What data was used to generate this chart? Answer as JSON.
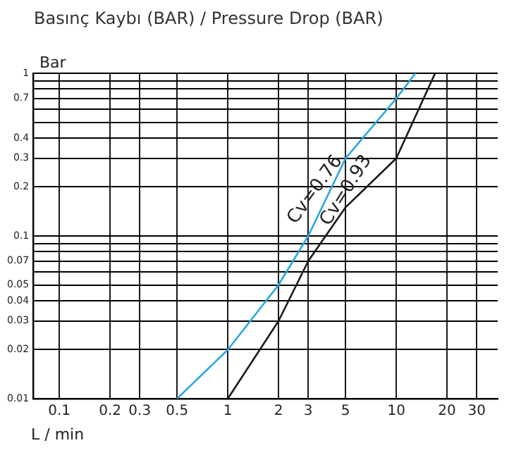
{
  "chart_data": {
    "type": "line",
    "title": "Basınç Kaybı (BAR) / Pressure Drop (BAR)",
    "xlabel": "L / min",
    "ylabel": "Bar",
    "series": [
      {
        "color": "#29a8e0",
        "x": [
          0.5,
          1,
          2,
          3,
          5,
          10,
          13
        ],
        "values": [
          0.01,
          0.02,
          0.05,
          0.1,
          0.3,
          0.7,
          1
        ]
      },
      {
        "color": "#1a1a1a",
        "x": [
          1,
          2,
          3,
          5,
          10,
          17
        ],
        "values": [
          0.01,
          0.03,
          0.07,
          0.15,
          0.3,
          1
        ]
      }
    ],
    "annotations": [
      "Cv=0.76",
      "Cv=0.93"
    ],
    "log": "xy",
    "grid": true,
    "legend": false,
    "marker": "none",
    "line_style": "solid",
    "xlim": [
      0.07,
      40
    ],
    "xticks": [
      0.1,
      0.2,
      0.3,
      0.5,
      1,
      2,
      3,
      5,
      10,
      20,
      30
    ],
    "ylim": [
      0.01,
      1
    ],
    "yticks": [
      1,
      {
        "value": 0.9,
        "label": null
      },
      {
        "value": 0.8,
        "label": null
      },
      0.7,
      {
        "value": 0.6,
        "label": null
      },
      {
        "value": 0.5,
        "label": null
      },
      0.4,
      0.3,
      0.2,
      0.1,
      {
        "value": 0.09,
        "label": null
      },
      {
        "value": 0.08,
        "label": null
      },
      0.07,
      {
        "value": 0.06,
        "label": null
      },
      0.05,
      0.04,
      0.03,
      0.02,
      0.01
    ]
  }
}
